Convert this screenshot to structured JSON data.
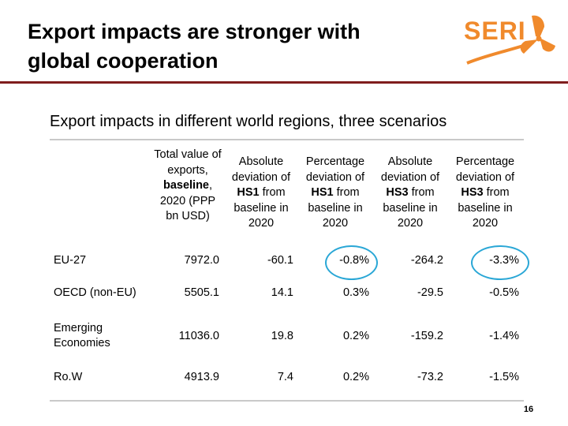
{
  "slide": {
    "title_line1": "Export impacts are stronger with",
    "title_line2": "global cooperation",
    "subtitle": "Export impacts in different world regions, three scenarios",
    "logo_text": "SERI",
    "page_number": "16",
    "accent_color": "#7f1d1d",
    "logo_color": "#f08a2c",
    "highlight_color": "#2aa7d6"
  },
  "table": {
    "headers": [
      {
        "pre": "Total value of exports,",
        "bold": "baseline",
        "post": ", 2020 (PPP bn USD)"
      },
      {
        "pre": "Absolute deviation of",
        "bold": "HS1",
        "post": " from baseline in 2020"
      },
      {
        "pre": "Percentage deviation of",
        "bold": "HS1",
        "post": " from baseline in 2020"
      },
      {
        "pre": "Absolute deviation of",
        "bold": "HS3",
        "post": " from baseline in 2020"
      },
      {
        "pre": "Percentage deviation of",
        "bold": "HS3",
        "post": " from baseline in 2020"
      }
    ],
    "rows": [
      {
        "label": "EU-27",
        "values": [
          "7972.0",
          "-60.1",
          "-0.8%",
          "-264.2",
          "-3.3%"
        ]
      },
      {
        "label": "OECD (non-EU)",
        "values": [
          "5505.1",
          "14.1",
          "0.3%",
          "-29.5",
          "-0.5%"
        ]
      },
      {
        "label": "Emerging Economies",
        "values": [
          "11036.0",
          "19.8",
          "0.2%",
          "-159.2",
          "-1.4%"
        ]
      },
      {
        "label": "Ro.W",
        "values": [
          "4913.9",
          "7.4",
          "0.2%",
          "-73.2",
          "-1.5%"
        ]
      }
    ]
  }
}
